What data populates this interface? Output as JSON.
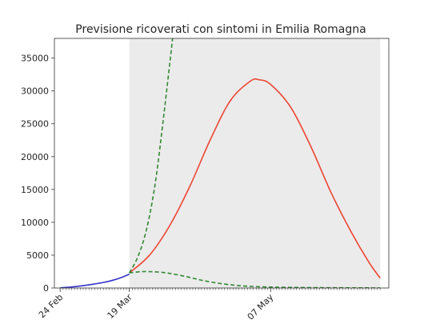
{
  "chart_data": {
    "type": "line",
    "title": "Previsione ricoverati con sintomi in Emilia Romagna",
    "xlabel": "",
    "ylabel": "",
    "x_axis": {
      "type": "date",
      "range": [
        "2020-02-22",
        "2020-06-17"
      ],
      "tick_labels": [
        {
          "date": "2020-02-24",
          "label": "24 Feb"
        },
        {
          "date": "2020-03-19",
          "label": "19 Mar"
        },
        {
          "date": "2020-05-07",
          "label": "07 May"
        }
      ]
    },
    "y_axis": {
      "range": [
        0,
        38000
      ],
      "ticks": [
        0,
        5000,
        10000,
        15000,
        20000,
        25000,
        30000,
        35000
      ]
    },
    "grid": false,
    "legend": "none",
    "shaded_region": {
      "from": "2020-03-19",
      "to": "2020-06-14",
      "color": "#ebebeb"
    },
    "series": [
      {
        "color": "#3333cc",
        "style": "solid",
        "points": [
          {
            "x": "2020-02-24",
            "y": 30
          },
          {
            "x": "2020-02-27",
            "y": 120
          },
          {
            "x": "2020-03-01",
            "y": 250
          },
          {
            "x": "2020-03-04",
            "y": 420
          },
          {
            "x": "2020-03-07",
            "y": 620
          },
          {
            "x": "2020-03-10",
            "y": 850
          },
          {
            "x": "2020-03-13",
            "y": 1150
          },
          {
            "x": "2020-03-16",
            "y": 1550
          },
          {
            "x": "2020-03-19",
            "y": 2100
          }
        ]
      },
      {
        "color": "#ee4433",
        "style": "solid",
        "points": [
          {
            "x": "2020-03-19",
            "y": 2300
          },
          {
            "x": "2020-03-26",
            "y": 5000
          },
          {
            "x": "2020-04-02",
            "y": 9500
          },
          {
            "x": "2020-04-09",
            "y": 15500
          },
          {
            "x": "2020-04-16",
            "y": 22500
          },
          {
            "x": "2020-04-23",
            "y": 28500
          },
          {
            "x": "2020-04-30",
            "y": 31500
          },
          {
            "x": "2020-05-03",
            "y": 31700
          },
          {
            "x": "2020-05-07",
            "y": 31000
          },
          {
            "x": "2020-05-14",
            "y": 27500
          },
          {
            "x": "2020-05-21",
            "y": 21500
          },
          {
            "x": "2020-05-28",
            "y": 14500
          },
          {
            "x": "2020-06-04",
            "y": 8500
          },
          {
            "x": "2020-06-10",
            "y": 4000
          },
          {
            "x": "2020-06-14",
            "y": 1500
          }
        ]
      },
      {
        "color": "#338833",
        "style": "dashed",
        "points": [
          {
            "x": "2020-03-19",
            "y": 2300
          },
          {
            "x": "2020-03-22",
            "y": 4800
          },
          {
            "x": "2020-03-25",
            "y": 9000
          },
          {
            "x": "2020-03-28",
            "y": 16000
          },
          {
            "x": "2020-03-31",
            "y": 26500
          },
          {
            "x": "2020-04-03",
            "y": 38000
          }
        ]
      },
      {
        "color": "#338833",
        "style": "dashed",
        "points": [
          {
            "x": "2020-03-19",
            "y": 2300
          },
          {
            "x": "2020-03-24",
            "y": 2500
          },
          {
            "x": "2020-03-31",
            "y": 2350
          },
          {
            "x": "2020-04-07",
            "y": 1800
          },
          {
            "x": "2020-04-14",
            "y": 1100
          },
          {
            "x": "2020-04-21",
            "y": 600
          },
          {
            "x": "2020-04-28",
            "y": 300
          },
          {
            "x": "2020-05-07",
            "y": 150
          },
          {
            "x": "2020-05-21",
            "y": 60
          },
          {
            "x": "2020-06-14",
            "y": 10
          }
        ]
      }
    ]
  }
}
